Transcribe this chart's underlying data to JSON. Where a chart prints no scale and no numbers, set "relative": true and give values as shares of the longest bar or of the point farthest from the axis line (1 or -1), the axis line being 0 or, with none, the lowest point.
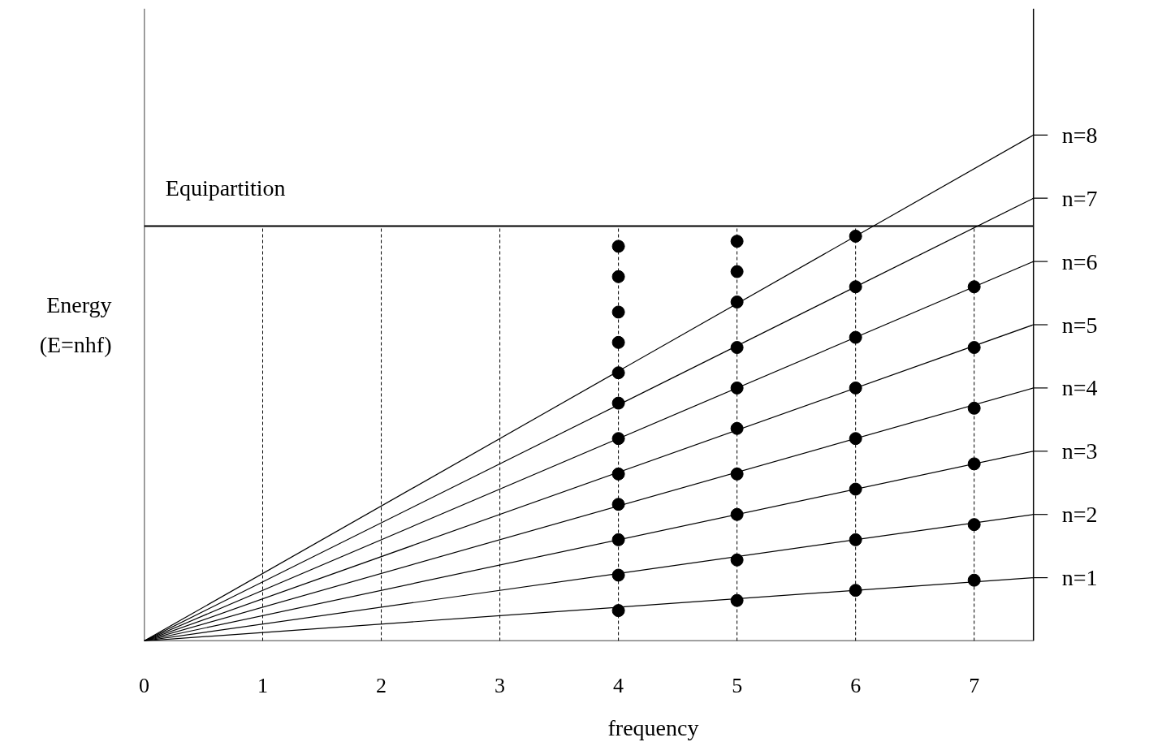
{
  "chart_data": {
    "type": "line",
    "relative": true,
    "xlabel": "frequency",
    "ylabel": "Energy\n(E=nhf)",
    "xlim": [
      0,
      7.5
    ],
    "xticks": [
      0,
      1,
      2,
      3,
      4,
      5,
      6,
      7
    ],
    "grid": "x",
    "legend": "right",
    "line_style": "solid",
    "x": [
      0,
      7.5
    ],
    "series": [
      {
        "name": "n=1",
        "color": "#000000",
        "values": [
          0,
          0.125
        ]
      },
      {
        "name": "n=2",
        "color": "#000000",
        "values": [
          0,
          0.25
        ]
      },
      {
        "name": "n=3",
        "color": "#000000",
        "values": [
          0,
          0.375
        ]
      },
      {
        "name": "n=4",
        "color": "#000000",
        "values": [
          0,
          0.5
        ]
      },
      {
        "name": "n=5",
        "color": "#000000",
        "values": [
          0,
          0.625
        ]
      },
      {
        "name": "n=6",
        "color": "#000000",
        "values": [
          0,
          0.75
        ]
      },
      {
        "name": "n=7",
        "color": "#000000",
        "values": [
          0,
          0.875
        ]
      },
      {
        "name": "n=8",
        "color": "#000000",
        "values": [
          0,
          1
        ]
      },
      {
        "type": "scatter",
        "marker": "circle",
        "color": "#000000",
        "x": [
          4,
          4,
          4,
          4,
          4,
          4,
          4,
          4,
          4,
          4,
          4,
          4,
          5,
          5,
          5,
          5,
          5,
          5,
          5,
          5,
          5,
          5,
          6,
          6,
          6,
          6,
          6,
          6,
          6,
          6,
          7,
          7,
          7,
          7,
          7,
          7
        ],
        "values": [
          0.06,
          0.13,
          0.2,
          0.27,
          0.33,
          0.4,
          0.47,
          0.53,
          0.59,
          0.65,
          0.72,
          0.78,
          0.08,
          0.16,
          0.25,
          0.33,
          0.42,
          0.5,
          0.58,
          0.67,
          0.73,
          0.79,
          0.1,
          0.2,
          0.3,
          0.4,
          0.5,
          0.6,
          0.7,
          0.8,
          0.12,
          0.23,
          0.35,
          0.46,
          0.58,
          0.7
        ]
      }
    ],
    "ref_lines": [
      {
        "axis": "y",
        "value": 0.82,
        "label": "Equipartition",
        "color": "#000000",
        "line_style": "solid"
      }
    ]
  }
}
